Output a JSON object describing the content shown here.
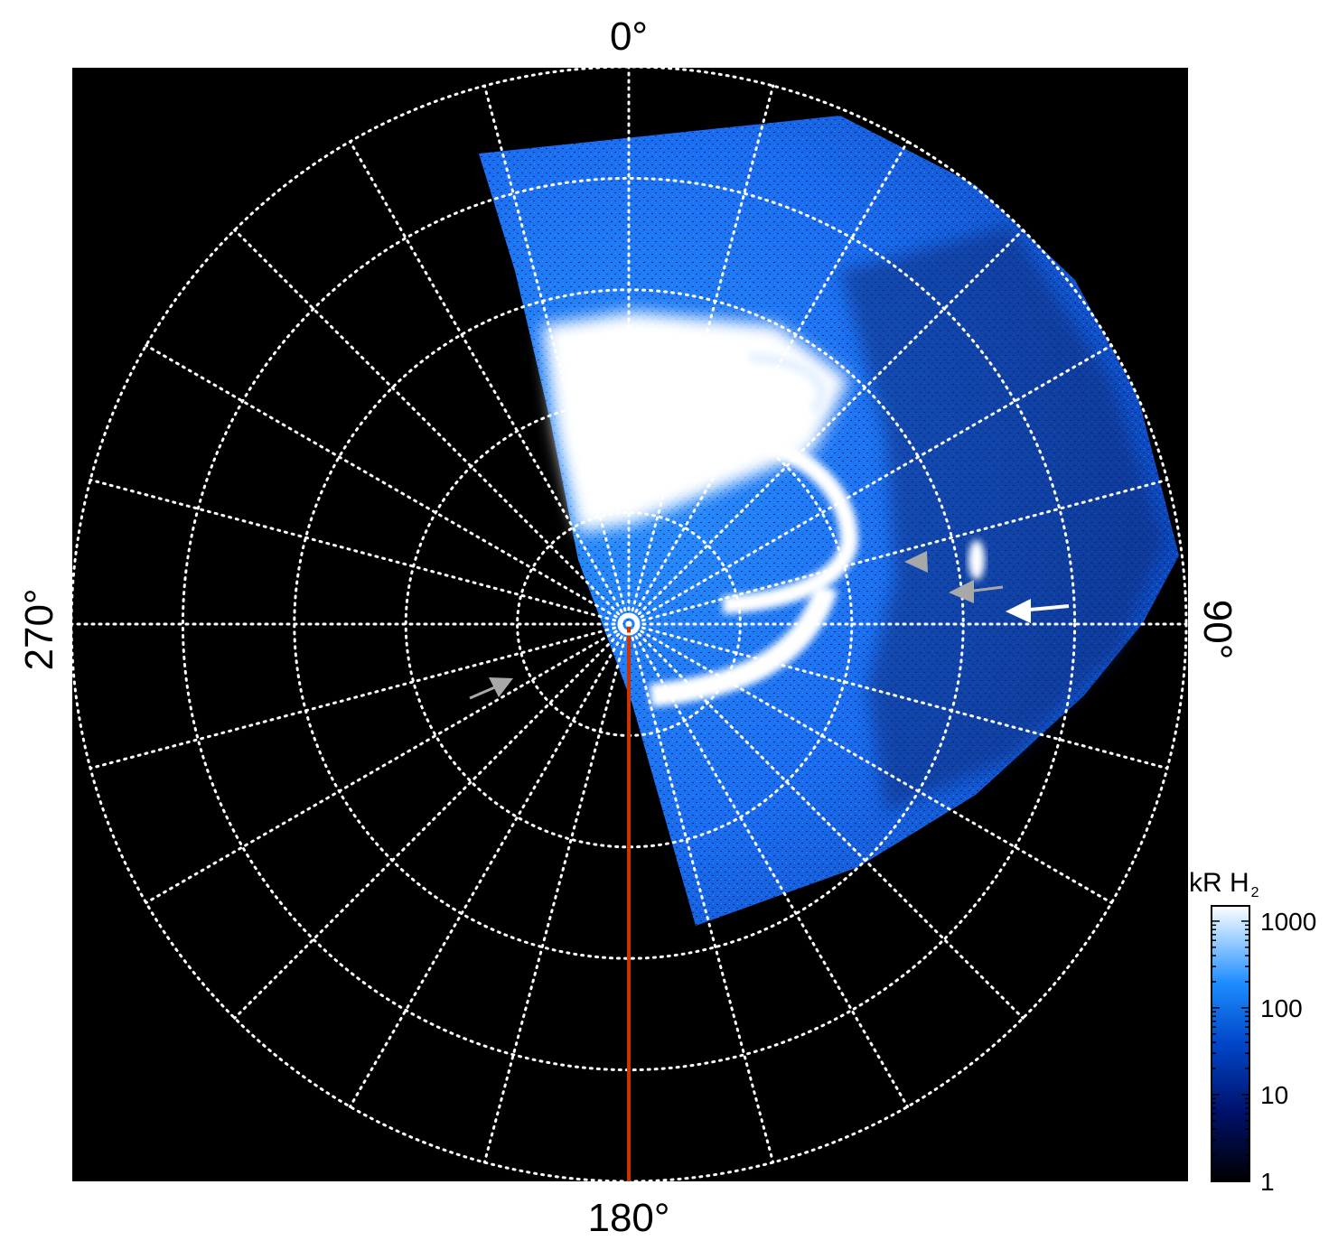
{
  "labels": {
    "top": "0°",
    "bottom": "180°",
    "left": "270°",
    "right": "90°"
  },
  "colorbar": {
    "title_main": "kR H",
    "title_sub": "2",
    "ticks": [
      "1000",
      "100",
      "10",
      "1"
    ],
    "tick_values": [
      1000,
      100,
      10,
      1
    ],
    "range": [
      1,
      1500
    ],
    "scale": "log"
  },
  "colors": {
    "background": "#000000",
    "grid": "#ffffff",
    "meridian": "#cc3300",
    "aurora_bright": "#ffffff",
    "aurora_mid": "#1e90ff",
    "aurora_dark": "#002a80",
    "arrow_white": "#ffffff",
    "arrow_grey": "#a8a8a8"
  }
}
